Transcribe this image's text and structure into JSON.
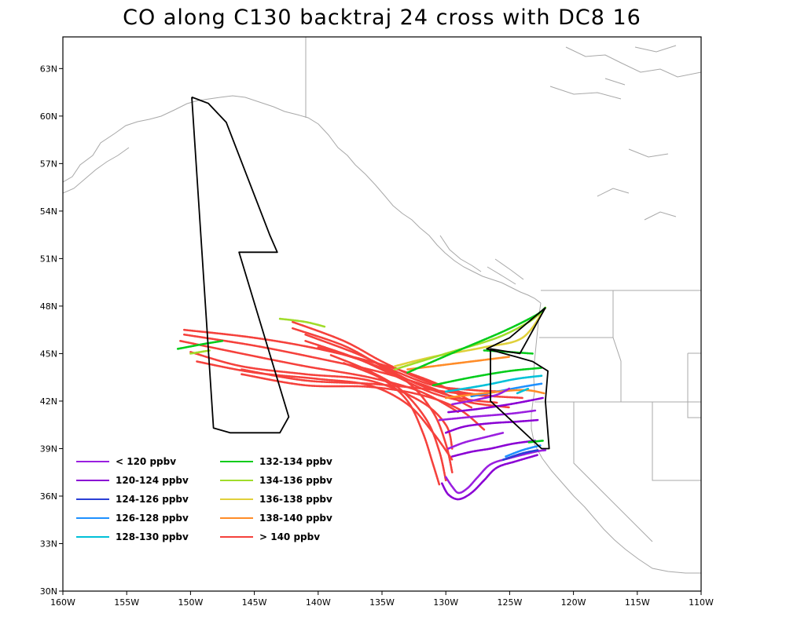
{
  "title": "CO along C130 backtraj 24 cross with DC8 16",
  "map": {
    "lon_range": [
      -160,
      -110
    ],
    "lat_range": [
      30,
      65
    ],
    "x_ticks": [
      -160,
      -155,
      -150,
      -145,
      -140,
      -135,
      -130,
      -125,
      -120,
      -115,
      -110
    ],
    "x_tick_labels": [
      "160W",
      "155W",
      "150W",
      "145W",
      "140W",
      "135W",
      "130W",
      "125W",
      "120W",
      "115W",
      "110W"
    ],
    "y_ticks": [
      30,
      33,
      36,
      39,
      42,
      45,
      48,
      51,
      54,
      57,
      60,
      63
    ],
    "y_tick_labels": [
      "30N",
      "33N",
      "36N",
      "39N",
      "42N",
      "45N",
      "48N",
      "51N",
      "54N",
      "57N",
      "60N",
      "63N"
    ],
    "coast_color": "#a8a8a8"
  },
  "legend": [
    {
      "label": "< 120 ppbv",
      "color": "#9a1fe0"
    },
    {
      "label": "120-124 ppbv",
      "color": "#8a00d4"
    },
    {
      "label": "124-126 ppbv",
      "color": "#2a3fd6"
    },
    {
      "label": "126-128 ppbv",
      "color": "#1e90ff"
    },
    {
      "label": "128-130 ppbv",
      "color": "#00c0d8"
    },
    {
      "label": "132-134 ppbv",
      "color": "#00cc1a"
    },
    {
      "label": "134-136 ppbv",
      "color": "#a0dc2a"
    },
    {
      "label": "136-138 ppbv",
      "color": "#e0d03a"
    },
    {
      "label": "138-140 ppbv",
      "color": "#ff8c28"
    },
    {
      "label": "> 140 ppbv",
      "color": "#f5413c"
    }
  ],
  "flight_track": [
    [
      -149.9,
      61.2
    ],
    [
      -148.6,
      60.8
    ],
    [
      -147.2,
      59.6
    ],
    [
      -143.8,
      52.5
    ],
    [
      -143.2,
      51.4
    ],
    [
      -146.2,
      51.4
    ],
    [
      -142.3,
      41.0
    ],
    [
      -143.0,
      40.0
    ],
    [
      -146.9,
      40.0
    ],
    [
      -148.2,
      40.3
    ],
    [
      -149.9,
      61.2
    ]
  ],
  "flight_track_east": [
    [
      -122.2,
      47.9
    ],
    [
      -124.2,
      45.0
    ],
    [
      -126.5,
      45.3
    ],
    [
      -126.5,
      42.0
    ],
    [
      -122.5,
      39.0
    ],
    [
      -121.9,
      39.0
    ],
    [
      -122.2,
      42.0
    ],
    [
      -122.0,
      43.9
    ],
    [
      -123.2,
      44.5
    ],
    [
      -124.5,
      44.8
    ],
    [
      -126.8,
      45.3
    ],
    [
      -125.0,
      46.0
    ],
    [
      -122.2,
      47.9
    ]
  ],
  "trajectories": [
    {
      "color_idx": 9,
      "points": [
        [
          -150.5,
          46.5
        ],
        [
          -145,
          46
        ],
        [
          -140,
          45.3
        ],
        [
          -135,
          44.3
        ],
        [
          -131,
          43.2
        ],
        [
          -128,
          42.0
        ]
      ]
    },
    {
      "color_idx": 9,
      "points": [
        [
          -150.5,
          46.2
        ],
        [
          -145,
          45.5
        ],
        [
          -140,
          44.7
        ],
        [
          -135,
          43.8
        ],
        [
          -131,
          42.8
        ],
        [
          -128,
          41.6
        ]
      ]
    },
    {
      "color_idx": 9,
      "points": [
        [
          -150.8,
          45.8
        ],
        [
          -146,
          45
        ],
        [
          -141,
          44.2
        ],
        [
          -136,
          43.5
        ],
        [
          -132,
          42.6
        ],
        [
          -129,
          41.3
        ]
      ]
    },
    {
      "color_idx": 9,
      "points": [
        [
          -150.0,
          45.1
        ],
        [
          -146,
          44.2
        ],
        [
          -141,
          43.7
        ],
        [
          -136,
          43.3
        ],
        [
          -132,
          42.0
        ],
        [
          -130,
          40.5
        ],
        [
          -129.5,
          39.0
        ]
      ]
    },
    {
      "color_idx": 9,
      "points": [
        [
          -149.5,
          44.5
        ],
        [
          -145,
          43.8
        ],
        [
          -140,
          43.4
        ],
        [
          -136,
          43.0
        ],
        [
          -133,
          41.8
        ],
        [
          -131,
          40.0
        ],
        [
          -129.5,
          38.3
        ]
      ]
    },
    {
      "color_idx": 9,
      "points": [
        [
          -142,
          47.0
        ],
        [
          -138,
          45.8
        ],
        [
          -135,
          44.5
        ],
        [
          -132,
          43.4
        ],
        [
          -129,
          42.6
        ],
        [
          -126,
          42.3
        ]
      ]
    },
    {
      "color_idx": 9,
      "points": [
        [
          -142,
          46.6
        ],
        [
          -138,
          45.5
        ],
        [
          -135,
          44.2
        ],
        [
          -132,
          43.0
        ],
        [
          -129,
          42.2
        ],
        [
          -126,
          41.9
        ]
      ]
    },
    {
      "color_idx": 9,
      "points": [
        [
          -141,
          46.2
        ],
        [
          -137,
          45.0
        ],
        [
          -134,
          43.9
        ],
        [
          -131,
          43.0
        ],
        [
          -128,
          42.7
        ],
        [
          -125.5,
          42.6
        ]
      ]
    },
    {
      "color_idx": 9,
      "points": [
        [
          -141,
          45.8
        ],
        [
          -137,
          44.7
        ],
        [
          -134,
          43.6
        ],
        [
          -131,
          42.5
        ],
        [
          -128,
          41.9
        ],
        [
          -125,
          41.6
        ]
      ]
    },
    {
      "color_idx": 9,
      "points": [
        [
          -140,
          45.4
        ],
        [
          -136,
          44.4
        ],
        [
          -133,
          43.2
        ],
        [
          -131,
          41.3
        ],
        [
          -130,
          39.3
        ],
        [
          -129.5,
          37.5
        ]
      ]
    },
    {
      "color_idx": 9,
      "points": [
        [
          -139,
          44.9
        ],
        [
          -136,
          43.9
        ],
        [
          -133.5,
          42.7
        ],
        [
          -131.5,
          40.8
        ],
        [
          -130.5,
          38.8
        ],
        [
          -130,
          37.0
        ]
      ]
    },
    {
      "color_idx": 9,
      "points": [
        [
          -138,
          44.4
        ],
        [
          -135,
          43.4
        ],
        [
          -133,
          42.0
        ],
        [
          -131.8,
          40.0
        ],
        [
          -131,
          38.0
        ],
        [
          -130.5,
          36.7
        ]
      ]
    },
    {
      "color_idx": 9,
      "points": [
        [
          -146,
          44.0
        ],
        [
          -141,
          43.3
        ],
        [
          -136,
          43.1
        ],
        [
          -132,
          42.8
        ],
        [
          -128,
          42.4
        ],
        [
          -124,
          42.2
        ]
      ]
    },
    {
      "color_idx": 9,
      "points": [
        [
          -146,
          43.7
        ],
        [
          -141,
          43.0
        ],
        [
          -136,
          42.9
        ],
        [
          -132,
          42.4
        ],
        [
          -129,
          41.5
        ],
        [
          -127,
          40.2
        ]
      ]
    },
    {
      "color_idx": 8,
      "points": [
        [
          -133,
          44.0
        ],
        [
          -130,
          44.3
        ],
        [
          -127,
          44.6
        ],
        [
          -125,
          44.8
        ]
      ]
    },
    {
      "color_idx": 7,
      "points": [
        [
          -134,
          44.2
        ],
        [
          -131,
          44.8
        ],
        [
          -127,
          45.4
        ],
        [
          -124,
          46.0
        ],
        [
          -122.2,
          47.9
        ]
      ]
    },
    {
      "color_idx": 6,
      "points": [
        [
          -134,
          44.0
        ],
        [
          -130,
          45.0
        ],
        [
          -126,
          46.0
        ],
        [
          -123.5,
          47.0
        ],
        [
          -122.3,
          47.8
        ]
      ]
    },
    {
      "color_idx": 5,
      "points": [
        [
          -133,
          43.8
        ],
        [
          -129,
          45.2
        ],
        [
          -125.5,
          46.4
        ],
        [
          -123,
          47.4
        ],
        [
          -122.2,
          47.9
        ]
      ]
    },
    {
      "color_idx": 5,
      "points": [
        [
          -127,
          45.2
        ],
        [
          -125,
          45.1
        ],
        [
          -123.2,
          45.0
        ]
      ]
    },
    {
      "color_idx": 5,
      "points": [
        [
          -151,
          45.3
        ],
        [
          -149,
          45.6
        ],
        [
          -147.5,
          45.8
        ]
      ]
    },
    {
      "color_idx": 6,
      "points": [
        [
          -143,
          47.2
        ],
        [
          -141,
          47.0
        ],
        [
          -139.5,
          46.7
        ]
      ]
    },
    {
      "color_idx": 6,
      "points": [
        [
          -150,
          45.0
        ],
        [
          -148.5,
          45.2
        ]
      ]
    },
    {
      "color_idx": 5,
      "points": [
        [
          -131,
          43.0
        ],
        [
          -128,
          43.5
        ],
        [
          -125,
          43.9
        ],
        [
          -122.5,
          44.1
        ]
      ]
    },
    {
      "color_idx": 4,
      "points": [
        [
          -130,
          42.6
        ],
        [
          -127,
          43.0
        ],
        [
          -124.5,
          43.4
        ],
        [
          -122.5,
          43.6
        ]
      ]
    },
    {
      "color_idx": 3,
      "points": [
        [
          -128,
          42.3
        ],
        [
          -126,
          42.6
        ],
        [
          -124,
          42.9
        ],
        [
          -122.5,
          43.1
        ]
      ]
    },
    {
      "color_idx": 8,
      "points": [
        [
          -130,
          42.2
        ],
        [
          -127,
          42.5
        ],
        [
          -124,
          42.7
        ],
        [
          -122.3,
          42.5
        ]
      ]
    },
    {
      "color_idx": 0,
      "points": [
        [
          -129.5,
          41.8
        ],
        [
          -127.5,
          42.1
        ],
        [
          -126,
          42.4
        ],
        [
          -125,
          42.8
        ]
      ]
    },
    {
      "color_idx": 1,
      "points": [
        [
          -129.8,
          41.3
        ],
        [
          -127.5,
          41.5
        ],
        [
          -125,
          41.8
        ],
        [
          -123,
          42.1
        ],
        [
          -122.4,
          42.2
        ]
      ]
    },
    {
      "color_idx": 0,
      "points": [
        [
          -130.5,
          40.8
        ],
        [
          -128,
          41.0
        ],
        [
          -125,
          41.2
        ],
        [
          -123,
          41.4
        ]
      ]
    },
    {
      "color_idx": 1,
      "points": [
        [
          -130,
          40.0
        ],
        [
          -128.5,
          40.4
        ],
        [
          -126.5,
          40.6
        ],
        [
          -124.5,
          40.7
        ],
        [
          -122.8,
          40.8
        ]
      ]
    },
    {
      "color_idx": 0,
      "points": [
        [
          -129.8,
          39.0
        ],
        [
          -128.5,
          39.4
        ],
        [
          -127,
          39.7
        ],
        [
          -125.5,
          40.0
        ]
      ]
    },
    {
      "color_idx": 1,
      "points": [
        [
          -129.5,
          38.5
        ],
        [
          -128,
          38.8
        ],
        [
          -126.5,
          39.0
        ],
        [
          -124.8,
          39.3
        ],
        [
          -123,
          39.5
        ]
      ]
    },
    {
      "color_idx": 0,
      "points": [
        [
          -130,
          37.2
        ],
        [
          -129.5,
          36.6
        ],
        [
          -129,
          36.2
        ],
        [
          -128.3,
          36.5
        ],
        [
          -127.5,
          37.2
        ],
        [
          -126.5,
          38.0
        ],
        [
          -125,
          38.4
        ],
        [
          -123,
          38.8
        ],
        [
          -122.2,
          38.9
        ]
      ]
    },
    {
      "color_idx": 1,
      "points": [
        [
          -130.3,
          36.8
        ],
        [
          -129.8,
          36.1
        ],
        [
          -129,
          35.8
        ],
        [
          -128,
          36.2
        ],
        [
          -127,
          37.0
        ],
        [
          -126,
          37.8
        ],
        [
          -124.5,
          38.2
        ],
        [
          -122.8,
          38.6
        ]
      ]
    },
    {
      "color_idx": 2,
      "points": [
        [
          -125.5,
          38.3
        ],
        [
          -124,
          38.7
        ],
        [
          -122.8,
          38.9
        ]
      ]
    },
    {
      "color_idx": 3,
      "points": [
        [
          -125.3,
          38.5
        ],
        [
          -124,
          38.9
        ],
        [
          -122.6,
          39.2
        ]
      ]
    },
    {
      "color_idx": 5,
      "points": [
        [
          -123.5,
          39.4
        ],
        [
          -122.4,
          39.5
        ]
      ]
    },
    {
      "color_idx": 4,
      "points": [
        [
          -124.4,
          42.5
        ],
        [
          -123.5,
          42.8
        ]
      ]
    }
  ]
}
